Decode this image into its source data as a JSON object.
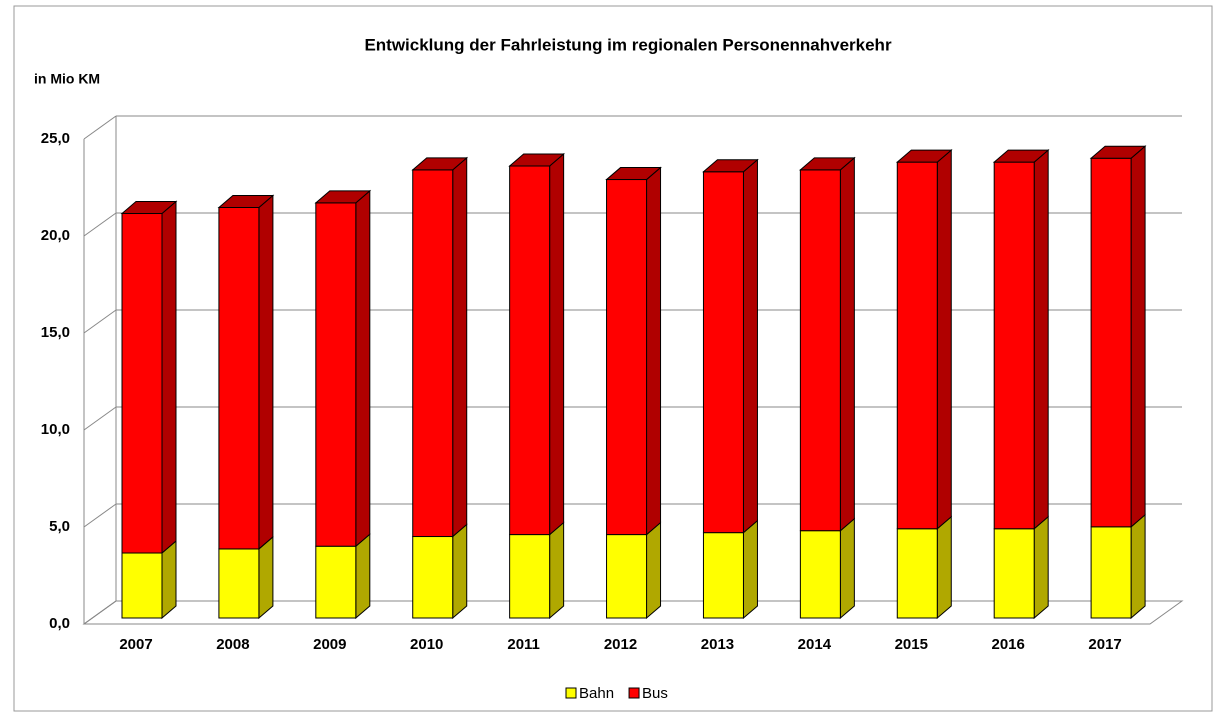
{
  "chart_data": {
    "type": "bar3d_stacked",
    "title": "Entwicklung der Fahrleistung im regionalen Personennahverkehr",
    "y_label": "in Mio KM",
    "categories": [
      "2007",
      "2008",
      "2009",
      "2010",
      "2011",
      "2012",
      "2013",
      "2014",
      "2015",
      "2016",
      "2017"
    ],
    "series": [
      {
        "name": "Bahn",
        "color": "#ffff00",
        "side": "#b0a800",
        "values": [
          3.35,
          3.56,
          3.7,
          4.2,
          4.3,
          4.3,
          4.4,
          4.5,
          4.6,
          4.6,
          4.7
        ]
      },
      {
        "name": "Bus",
        "color": "#ff0000",
        "side": "#b00000",
        "values": [
          17.5,
          17.6,
          17.7,
          18.9,
          19.0,
          18.3,
          18.6,
          18.6,
          18.9,
          18.9,
          19.0
        ]
      }
    ],
    "ylim": [
      0,
      25
    ],
    "yticks": [
      {
        "value": 0,
        "label": "0,0"
      },
      {
        "value": 5,
        "label": "5,0"
      },
      {
        "value": 10,
        "label": "10,0"
      },
      {
        "value": 15,
        "label": "15,0"
      },
      {
        "value": 20,
        "label": "20,0"
      },
      {
        "value": 25,
        "label": "25,0"
      }
    ],
    "grid": true,
    "legend": "bottom"
  }
}
